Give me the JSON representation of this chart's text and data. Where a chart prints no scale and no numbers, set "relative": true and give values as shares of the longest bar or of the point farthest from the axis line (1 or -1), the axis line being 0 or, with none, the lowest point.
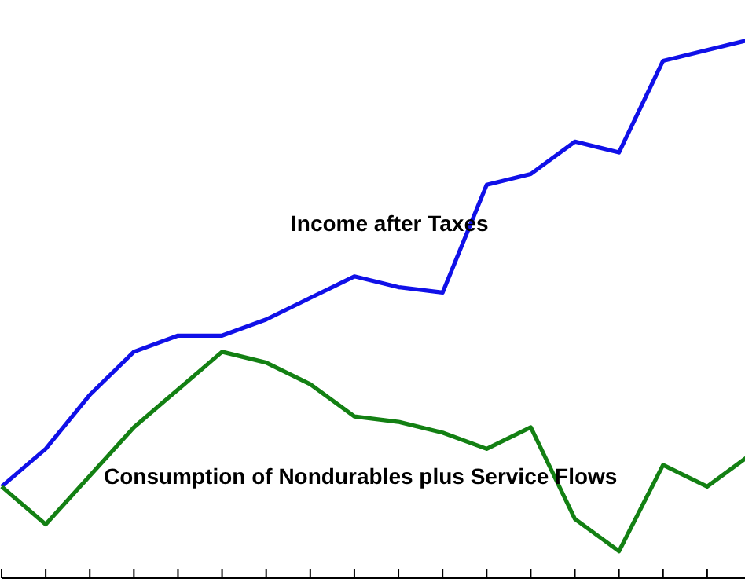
{
  "chart_data": {
    "type": "line",
    "relative": true,
    "categories": [
      null,
      null,
      null,
      null,
      null,
      null,
      null,
      null,
      null,
      null,
      null,
      null,
      null,
      null,
      null,
      null,
      null,
      null
    ],
    "series": [
      {
        "name": "Income after Taxes",
        "color": "#1010e8",
        "values": [
          0.17,
          0.24,
          0.34,
          0.42,
          0.45,
          0.45,
          0.48,
          0.52,
          0.56,
          0.54,
          0.53,
          0.73,
          0.75,
          0.81,
          0.79,
          0.96,
          0.98,
          1
        ]
      },
      {
        "name": "Consumption of Nondurables plus Service Flows",
        "color": "#138013",
        "values": [
          0.17,
          0.1,
          0.19,
          0.28,
          0.35,
          0.42,
          0.4,
          0.36,
          0.3,
          0.29,
          0.27,
          0.24,
          0.28,
          0.11,
          0.05,
          0.21,
          0.17,
          0.23
        ]
      }
    ],
    "marker": "none",
    "line_style": "solid"
  }
}
